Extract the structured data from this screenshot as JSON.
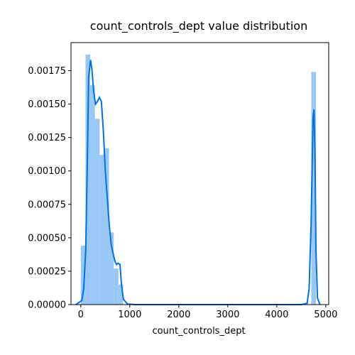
{
  "chart_data": {
    "type": "bar",
    "title": "count_controls_dept value distribution",
    "xlabel": "count_controls_dept",
    "ylabel": "",
    "xlim": [
      -200,
      5060
    ],
    "ylim": [
      0,
      0.00196
    ],
    "xticks": [
      0,
      1000,
      2000,
      3000,
      4000,
      5000
    ],
    "xtick_labels": [
      "0",
      "1000",
      "2000",
      "3000",
      "4000",
      "5000"
    ],
    "yticks": [
      0,
      0.00025,
      0.0005,
      0.00075,
      0.001,
      0.00125,
      0.0015,
      0.00175
    ],
    "ytick_labels": [
      "0.00000",
      "0.00025",
      "0.00050",
      "0.00075",
      "0.00100",
      "0.00125",
      "0.00150",
      "0.00175"
    ],
    "grid": false,
    "histogram": {
      "bin_edges": [
        0,
        96,
        192,
        288,
        384,
        480,
        576,
        672,
        768,
        864,
        4704,
        4800
      ],
      "densities": [
        0.00044,
        0.00187,
        0.00164,
        0.00139,
        0.00112,
        0.00117,
        0.00054,
        0.00027,
        0.00015,
        0,
        0.00174
      ],
      "color": "#99c8f7"
    },
    "kde": {
      "x": [
        -100,
        20,
        60,
        100,
        130,
        160,
        200,
        230,
        260,
        300,
        340,
        380,
        420,
        460,
        500,
        540,
        580,
        620,
        660,
        700,
        730,
        760,
        800,
        830,
        870,
        950,
        1100,
        4500,
        4620,
        4660,
        4700,
        4720,
        4740,
        4760,
        4780,
        4800,
        4830,
        4880
      ],
      "y": [
        0,
        3e-05,
        0.00012,
        0.0004,
        0.001,
        0.0017,
        0.00183,
        0.00175,
        0.0016,
        0.0015,
        0.00152,
        0.00155,
        0.00152,
        0.0013,
        0.001,
        0.0008,
        0.0006,
        0.00045,
        0.00038,
        0.00032,
        0.0003,
        0.00031,
        0.0003,
        0.00015,
        4e-05,
        5e-06,
        0,
        0,
        1e-05,
        0.00012,
        0.0006,
        0.001,
        0.0014,
        0.00146,
        0.0011,
        0.0004,
        5e-05,
        0
      ],
      "color": "#0072e6"
    }
  }
}
